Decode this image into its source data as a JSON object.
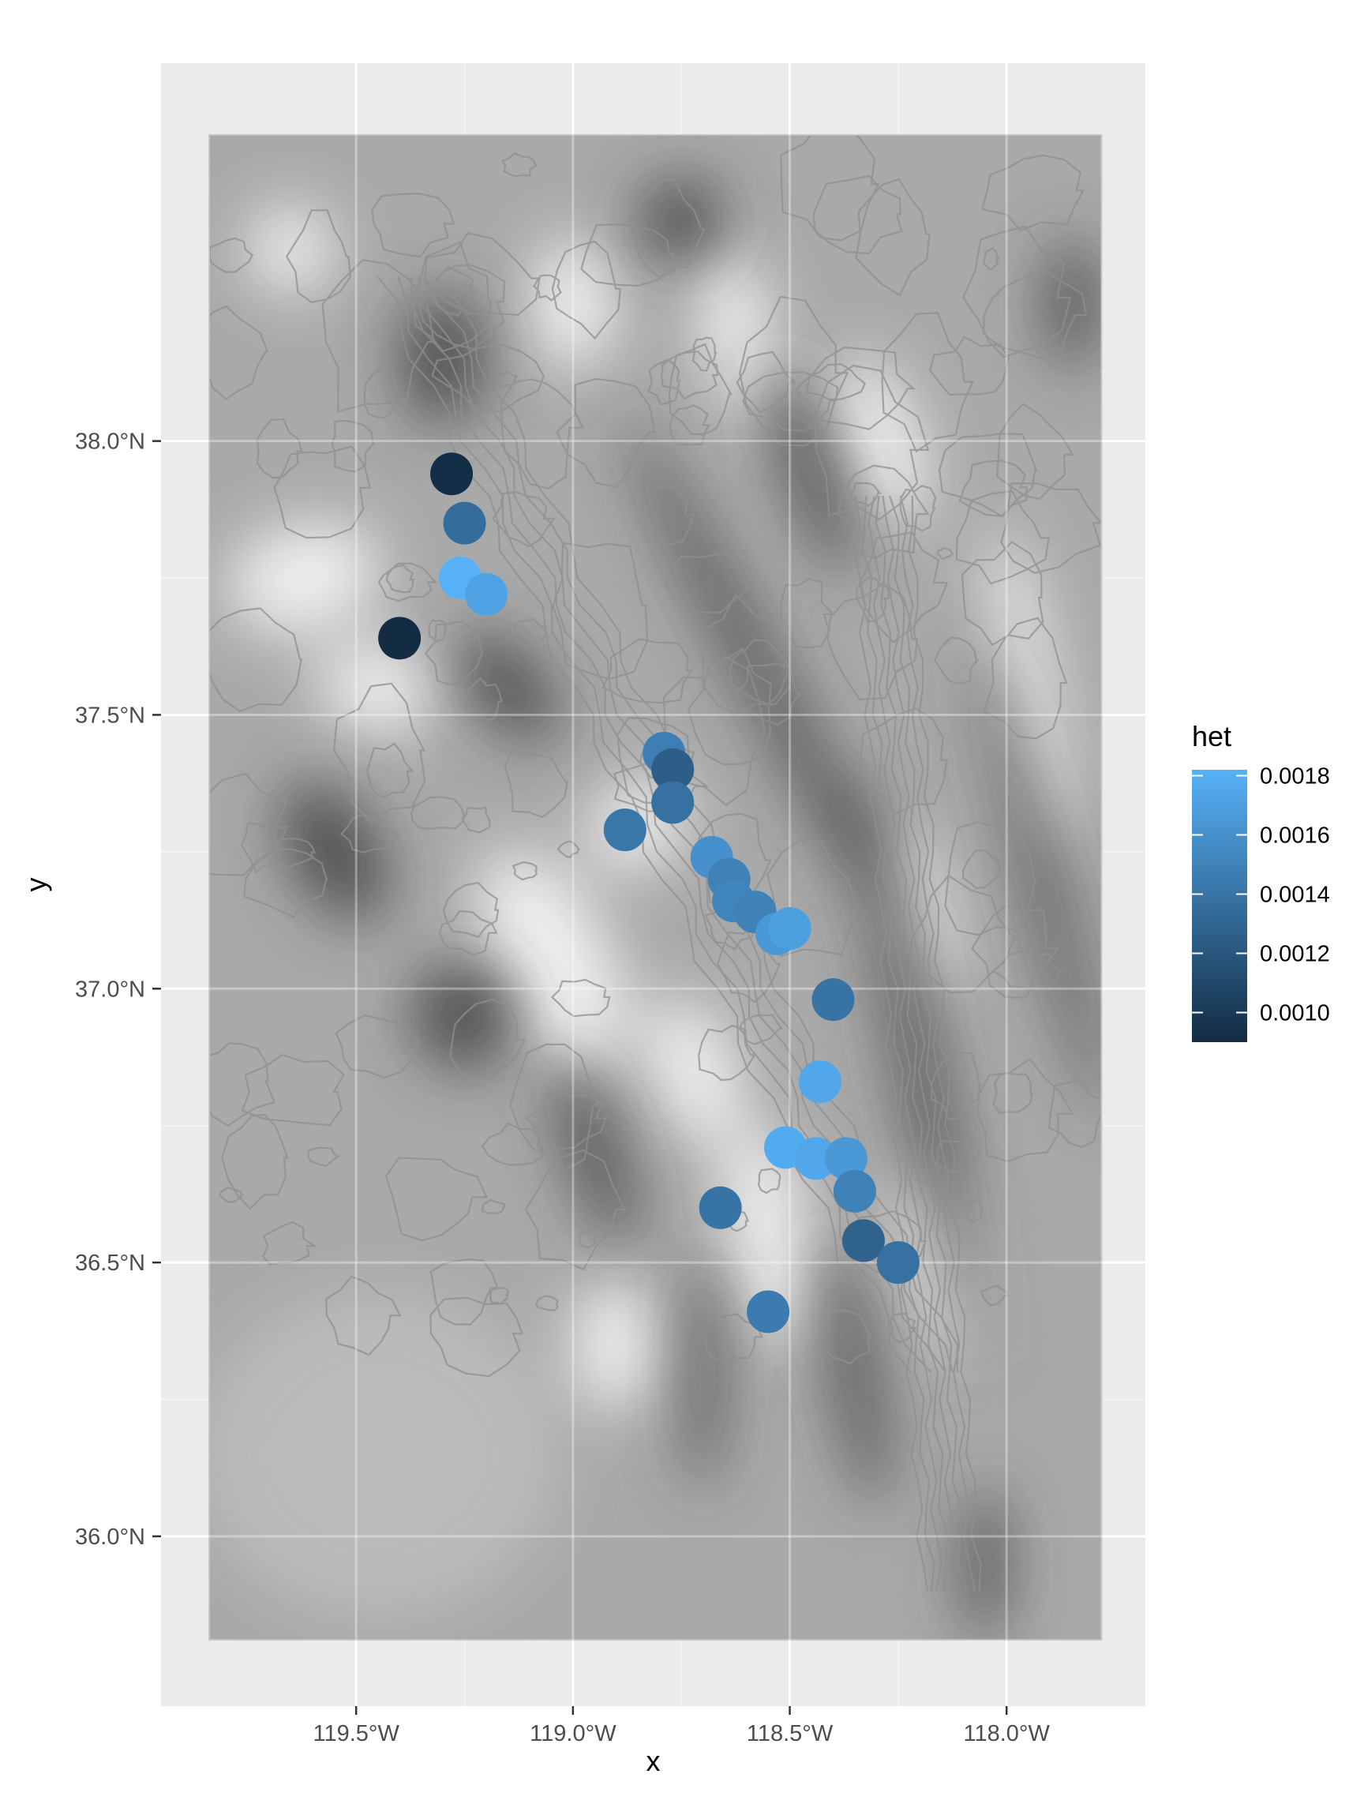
{
  "chart_data": {
    "type": "scatter",
    "xlabel": "x",
    "ylabel": "y",
    "xlim": [
      -119.95,
      -117.68
    ],
    "ylim": [
      35.69,
      38.69
    ],
    "x_ticks": [
      {
        "value": -119.5,
        "label": "119.5°W"
      },
      {
        "value": -119.0,
        "label": "119.0°W"
      },
      {
        "value": -118.5,
        "label": "118.5°W"
      },
      {
        "value": -118.0,
        "label": "118.0°W"
      }
    ],
    "y_ticks": [
      {
        "value": 36.0,
        "label": "36.0°N"
      },
      {
        "value": 36.5,
        "label": "36.5°N"
      },
      {
        "value": 37.0,
        "label": "37.0°N"
      },
      {
        "value": 37.5,
        "label": "37.5°N"
      },
      {
        "value": 38.0,
        "label": "38.0°N"
      }
    ],
    "raster_extent": {
      "xmin": -119.84,
      "xmax": -117.78,
      "ymin": 35.81,
      "ymax": 38.56
    },
    "grid": true,
    "background": "elevation-hillshade-with-contours",
    "color_var": "het",
    "legend": {
      "title": "het",
      "placement": "right",
      "min": 0.0009,
      "max": 0.00182,
      "low_color": "#132b43",
      "high_color": "#56b1f7",
      "breaks": [
        {
          "value": 0.0018,
          "label": "0.0018"
        },
        {
          "value": 0.0016,
          "label": "0.0016"
        },
        {
          "value": 0.0014,
          "label": "0.0014"
        },
        {
          "value": 0.0012,
          "label": "0.0012"
        },
        {
          "value": 0.001,
          "label": "0.0010"
        }
      ]
    },
    "points": [
      {
        "x": -119.28,
        "y": 37.94,
        "het": 0.00092
      },
      {
        "x": -119.25,
        "y": 37.85,
        "het": 0.00135
      },
      {
        "x": -119.26,
        "y": 37.75,
        "het": 0.00182
      },
      {
        "x": -119.2,
        "y": 37.72,
        "het": 0.00172
      },
      {
        "x": -119.4,
        "y": 37.64,
        "het": 0.0009
      },
      {
        "x": -118.79,
        "y": 37.43,
        "het": 0.00148
      },
      {
        "x": -118.77,
        "y": 37.4,
        "het": 0.00125
      },
      {
        "x": -118.77,
        "y": 37.34,
        "het": 0.00138
      },
      {
        "x": -118.88,
        "y": 37.29,
        "het": 0.00142
      },
      {
        "x": -118.68,
        "y": 37.24,
        "het": 0.0016
      },
      {
        "x": -118.64,
        "y": 37.2,
        "het": 0.0015
      },
      {
        "x": -118.63,
        "y": 37.16,
        "het": 0.00152
      },
      {
        "x": -118.58,
        "y": 37.14,
        "het": 0.0015
      },
      {
        "x": -118.53,
        "y": 37.1,
        "het": 0.00165
      },
      {
        "x": -118.5,
        "y": 37.11,
        "het": 0.0017
      },
      {
        "x": -118.4,
        "y": 36.98,
        "het": 0.0014
      },
      {
        "x": -118.43,
        "y": 36.83,
        "het": 0.00175
      },
      {
        "x": -118.51,
        "y": 36.71,
        "het": 0.00178
      },
      {
        "x": -118.44,
        "y": 36.69,
        "het": 0.00175
      },
      {
        "x": -118.37,
        "y": 36.69,
        "het": 0.00165
      },
      {
        "x": -118.35,
        "y": 36.63,
        "het": 0.0015
      },
      {
        "x": -118.66,
        "y": 36.6,
        "het": 0.0014
      },
      {
        "x": -118.33,
        "y": 36.54,
        "het": 0.00128
      },
      {
        "x": -118.25,
        "y": 36.5,
        "het": 0.00138
      },
      {
        "x": -118.55,
        "y": 36.41,
        "het": 0.00145
      }
    ]
  }
}
